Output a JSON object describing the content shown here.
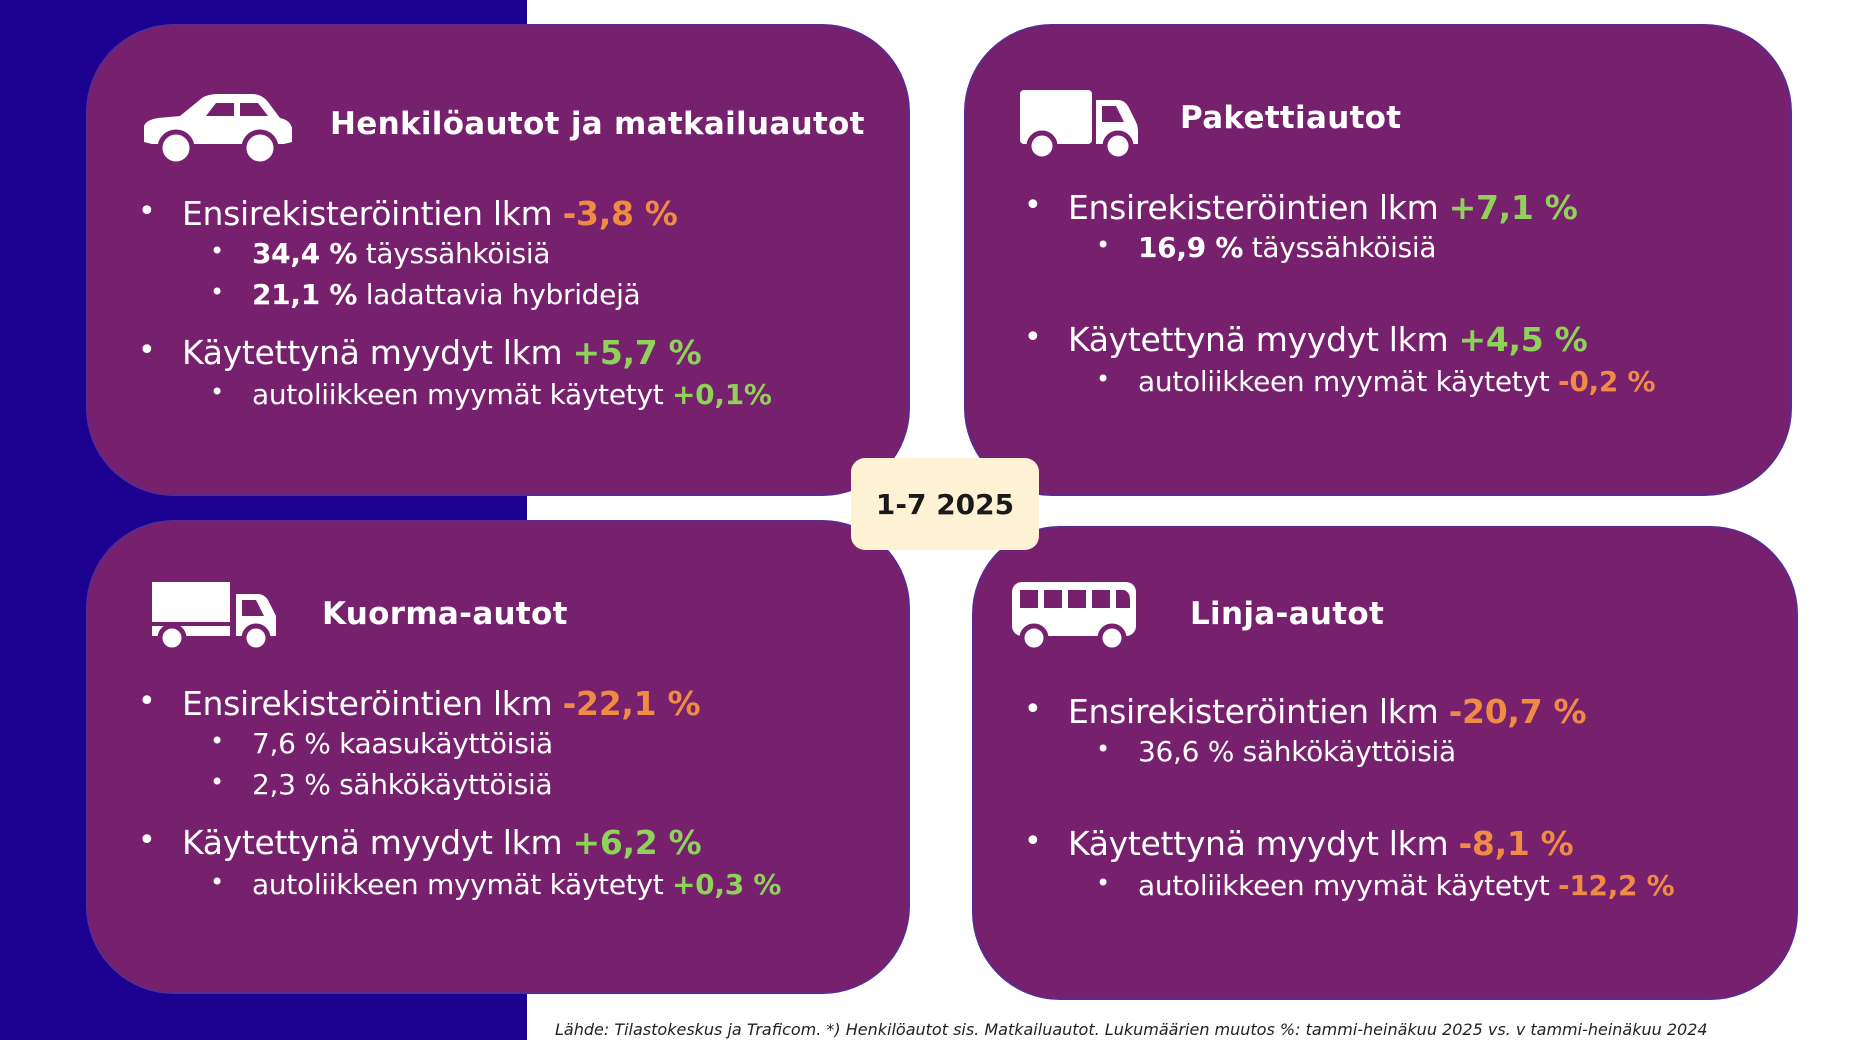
{
  "period": "1-7 2025",
  "source": "Lähde: Tilastokeskus ja Traficom. *) Henkilöautot sis. Matkailuautot. Lukumäärien muutos %: tammi-heinäkuu 2025 vs. v tammi-heinäkuu 2024",
  "colors": {
    "panel": "#76206e",
    "background_left": "#1c008f",
    "positive": "#8ed25a",
    "negative": "#f08b43",
    "period_box": "#fdf3d4"
  },
  "panels": [
    {
      "title": "Henkilöautot ja matkailuautot",
      "icon": "car-icon",
      "registrations": {
        "label": "Ensirekisteröintien lkm",
        "change": "-3,8 %"
      },
      "registration_details": [
        {
          "value": "34,4 %",
          "text": "täyssähköisiä"
        },
        {
          "value": "21,1 %",
          "text": "ladattavia hybridejä"
        }
      ],
      "used": {
        "label": "Käytettynä myydyt lkm",
        "change": "+5,7 %"
      },
      "dealer": {
        "label": "autoliikkeen myymät käytetyt",
        "change": "+0,1%"
      }
    },
    {
      "title": "Pakettiautot",
      "icon": "van-icon",
      "registrations": {
        "label": "Ensirekisteröintien lkm",
        "change": "+7,1 %"
      },
      "registration_details": [
        {
          "value": "16,9 %",
          "text": "täyssähköisiä"
        }
      ],
      "used": {
        "label": "Käytettynä myydyt lkm",
        "change": "+4,5 %"
      },
      "dealer": {
        "label": "autoliikkeen myymät käytetyt",
        "change": "-0,2 %"
      }
    },
    {
      "title": "Kuorma-autot",
      "icon": "truck-icon",
      "registrations": {
        "label": "Ensirekisteröintien lkm",
        "change": "-22,1 %"
      },
      "registration_details": [
        {
          "text": "7,6 % kaasukäyttöisiä"
        },
        {
          "text": "2,3 % sähkökäyttöisiä"
        }
      ],
      "used": {
        "label": "Käytettynä myydyt lkm",
        "change": "+6,2 %"
      },
      "dealer": {
        "label": "autoliikkeen myymät käytetyt",
        "change": "+0,3 %"
      }
    },
    {
      "title": "Linja-autot",
      "icon": "bus-icon",
      "registrations": {
        "label": "Ensirekisteröintien lkm",
        "change": "-20,7 %"
      },
      "registration_details": [
        {
          "text": "36,6 % sähkökäyttöisiä"
        }
      ],
      "used": {
        "label": "Käytettynä myydyt lkm",
        "change": "-8,1 %"
      },
      "dealer": {
        "label": "autoliikkeen myymät käytetyt",
        "change": "-12,2 %"
      }
    }
  ]
}
